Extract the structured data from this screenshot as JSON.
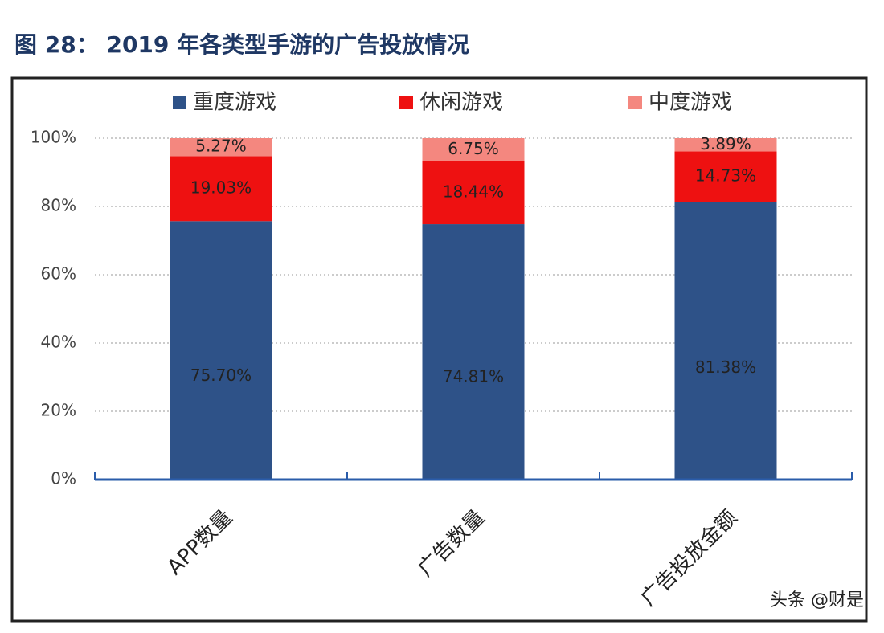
{
  "chart_data": {
    "type": "stacked_bar",
    "title": "图 28：  2019 年各类型手游的广告投放情况",
    "categories": [
      "APP数量",
      "广告数量",
      "广告投放金额"
    ],
    "series": [
      {
        "name": "重度游戏",
        "color": "#2e5288",
        "values": [
          75.7,
          74.81,
          81.38
        ],
        "value_labels": [
          "75.70%",
          "74.81%",
          "81.38%"
        ]
      },
      {
        "name": "休闲游戏",
        "color": "#ee1111",
        "values": [
          19.03,
          18.44,
          14.73
        ],
        "value_labels": [
          "19.03%",
          "18.44%",
          "14.73%"
        ]
      },
      {
        "name": "中度游戏",
        "color": "#f4877f",
        "values": [
          5.27,
          6.75,
          3.89
        ],
        "value_labels": [
          "5.27%",
          "6.75%",
          "3.89%"
        ]
      }
    ],
    "ylim": [
      0,
      100
    ],
    "yticks": [
      {
        "value": 0,
        "label": "0%"
      },
      {
        "value": 20,
        "label": "20%"
      },
      {
        "value": 40,
        "label": "40%"
      },
      {
        "value": 60,
        "label": "60%"
      },
      {
        "value": 80,
        "label": "80%"
      },
      {
        "value": 100,
        "label": "100%"
      }
    ],
    "grid": true,
    "legend": "top",
    "watermark": "头条 @财是"
  }
}
